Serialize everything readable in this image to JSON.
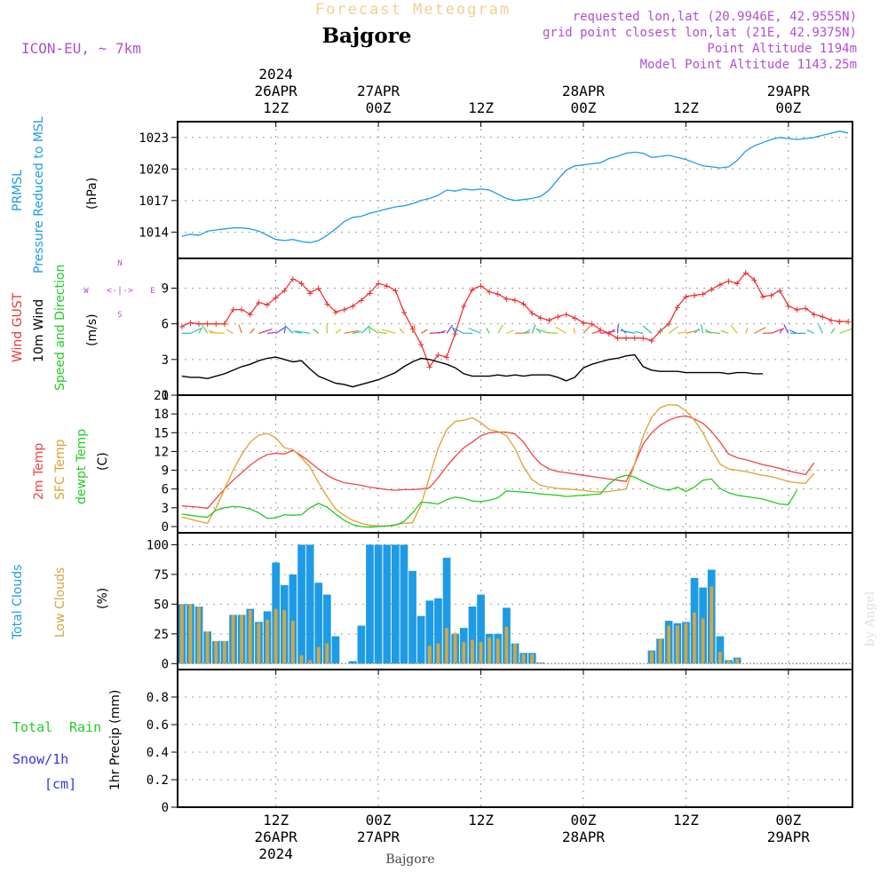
{
  "header": {
    "title": "Forecast Meteogram",
    "location": "Bajgore",
    "model": "ICON-EU, ~ 7km",
    "requested": "requested lon,lat (20.9946E, 42.9555N)",
    "grid_point": "grid point closest lon,lat (21E, 42.9375N)",
    "point_altitude": "Point Altitude 1194m",
    "model_altitude": "Model Point Altitude 1143.25m"
  },
  "time_axis": {
    "top_ticks": [
      {
        "t": 12,
        "lines": [
          "2024",
          "26APR",
          "12Z"
        ]
      },
      {
        "t": 24,
        "lines": [
          "27APR",
          "00Z"
        ]
      },
      {
        "t": 36,
        "lines": [
          "12Z"
        ]
      },
      {
        "t": 48,
        "lines": [
          "28APR",
          "00Z"
        ]
      },
      {
        "t": 60,
        "lines": [
          "12Z"
        ]
      },
      {
        "t": 72,
        "lines": [
          "29APR",
          "00Z"
        ]
      }
    ],
    "bottom_ticks": [
      {
        "t": 12,
        "lines": [
          "12Z",
          "26APR",
          "2024"
        ]
      },
      {
        "t": 24,
        "lines": [
          "00Z",
          "27APR"
        ]
      },
      {
        "t": 36,
        "lines": [
          "12Z"
        ]
      },
      {
        "t": 48,
        "lines": [
          "00Z",
          "28APR"
        ]
      },
      {
        "t": 60,
        "lines": [
          "12Z"
        ]
      },
      {
        "t": 72,
        "lines": [
          "00Z",
          "29APR"
        ]
      }
    ],
    "footer_label": "Bajgore",
    "credit": "by Angel"
  },
  "panel_labels": {
    "pressure": {
      "lines": [
        "PRMSL",
        "Pressure Reduced to MSL"
      ],
      "unit": "(hPa)"
    },
    "wind": {
      "gust": "Wind GUST",
      "wind10": "10m Wind",
      "dir": "Speed and Direction",
      "unit": "(m/s)",
      "compass": {
        "n": "N",
        "s": "S",
        "w": "W",
        "e": "E",
        "row": "<-|->"
      }
    },
    "temp": {
      "t2m": "2m Temp",
      "sfc": "SFC Temp",
      "dew": "dewpt Temp",
      "unit": "(C)"
    },
    "cloud": {
      "total": "Total Clouds",
      "low": "Low Clouds",
      "unit": "(%)"
    },
    "precip": {
      "total": "Total",
      "rain": "Rain",
      "snow": "Snow/1h",
      "cm": "[cm]",
      "unit": "1hr Precip (mm)"
    }
  },
  "colors": {
    "pressure": "#1e9be6",
    "gust": "#ee3333",
    "wind": "#000000",
    "t2m": "#ee4444",
    "sfc": "#e0a030",
    "dew": "#22cc22",
    "total_cloud": "#1e9be6",
    "low_cloud": "#d4a640",
    "label_green": "#22cc22",
    "label_blue": "#3333ee",
    "label_purple": "#b050d0",
    "title": "#f0d090"
  },
  "chart_data": [
    {
      "type": "line",
      "name": "pressure",
      "title": "PRMSL Pressure Reduced to MSL",
      "ylabel": "(hPa)",
      "ylim": [
        1011.5,
        1024.5
      ],
      "xlim": [
        0.5,
        79.5
      ],
      "yticks": [
        1014,
        1017,
        1020,
        1023
      ],
      "series": [
        {
          "name": "PRMSL",
          "x_start": 1,
          "x_step": 1,
          "values": [
            1013.6,
            1013.8,
            1013.7,
            1014.1,
            1014.2,
            1014.3,
            1014.4,
            1014.4,
            1014.3,
            1014.1,
            1013.7,
            1013.3,
            1013.2,
            1013.3,
            1013.1,
            1013.0,
            1013.2,
            1013.7,
            1014.3,
            1015.0,
            1015.4,
            1015.5,
            1015.8,
            1016.0,
            1016.2,
            1016.4,
            1016.5,
            1016.7,
            1017.0,
            1017.2,
            1017.5,
            1018.0,
            1017.9,
            1018.1,
            1018.0,
            1018.1,
            1018.0,
            1017.6,
            1017.2,
            1017.0,
            1017.1,
            1017.2,
            1017.4,
            1018.0,
            1019.0,
            1019.9,
            1020.3,
            1020.4,
            1020.5,
            1020.6,
            1021.0,
            1021.2,
            1021.5,
            1021.6,
            1021.5,
            1021.1,
            1021.2,
            1021.3,
            1021.1,
            1020.9,
            1020.6,
            1020.3,
            1020.2,
            1020.1,
            1020.2,
            1020.8,
            1021.7,
            1022.2,
            1022.5,
            1022.8,
            1023.0,
            1022.9,
            1022.8,
            1022.9,
            1023.0,
            1023.2,
            1023.4,
            1023.6,
            1023.4
          ]
        }
      ]
    },
    {
      "type": "line",
      "name": "wind",
      "ylabel": "(m/s)",
      "ylim": [
        0,
        11.5
      ],
      "xlim": [
        0.5,
        79.5
      ],
      "yticks": [
        0,
        3,
        6,
        9
      ],
      "series": [
        {
          "name": "Wind GUST",
          "x_start": 1,
          "x_step": 1,
          "values": [
            5.8,
            6.1,
            6.0,
            6.0,
            6.0,
            6.0,
            7.2,
            7.2,
            6.8,
            7.8,
            7.6,
            8.2,
            8.8,
            9.8,
            9.4,
            8.6,
            9.0,
            7.7,
            7.0,
            7.2,
            7.5,
            8.0,
            8.6,
            9.4,
            9.2,
            8.8,
            7.0,
            5.6,
            4.3,
            2.4,
            3.4,
            3.2,
            5.2,
            7.5,
            8.9,
            9.2,
            8.7,
            8.5,
            8.1,
            8.0,
            7.7,
            6.9,
            6.5,
            6.3,
            6.6,
            6.8,
            6.5,
            6.1,
            6.0,
            5.5,
            5.2,
            4.8,
            4.8,
            4.8,
            4.8,
            4.6,
            5.4,
            6.0,
            7.4,
            8.3,
            8.4,
            8.5,
            8.9,
            9.3,
            9.6,
            9.4,
            10.3,
            9.7,
            8.3,
            8.4,
            8.8,
            7.5,
            7.2,
            7.3,
            6.8,
            6.6,
            6.3,
            6.2,
            6.2
          ]
        },
        {
          "name": "10m Wind",
          "x_start": 1,
          "x_step": 1,
          "values": [
            1.6,
            1.5,
            1.5,
            1.4,
            1.6,
            1.8,
            2.1,
            2.4,
            2.6,
            2.9,
            3.1,
            3.2,
            3.0,
            2.8,
            2.9,
            2.2,
            1.6,
            1.3,
            1.0,
            0.9,
            0.7,
            0.9,
            1.1,
            1.3,
            1.6,
            1.9,
            2.4,
            2.8,
            3.1,
            3.0,
            2.8,
            2.6,
            2.3,
            1.8,
            1.6,
            1.6,
            1.6,
            1.7,
            1.6,
            1.7,
            1.6,
            1.7,
            1.7,
            1.7,
            1.5,
            1.2,
            1.5,
            2.3,
            2.6,
            2.8,
            3.0,
            3.1,
            3.3,
            3.4,
            2.4,
            2.1,
            2.0,
            2.0,
            2.0,
            1.9,
            1.9,
            1.9,
            1.9,
            1.9,
            1.8,
            1.9,
            1.9,
            1.8,
            1.8
          ]
        }
      ],
      "wind_barb_colors": [
        "#20c8a0",
        "#20c8a0",
        "#30d090",
        "#60d040",
        "#a0d030",
        "#e0c020",
        "#f0a020",
        "#f07020",
        "#f05020",
        "#e03060",
        "#c030c0",
        "#6040e0",
        "#3070e0",
        "#20a0e0",
        "#20c0d0",
        "#20d0a0",
        "#40d040",
        "#a0d030",
        "#e0c020",
        "#f08020"
      ]
    },
    {
      "type": "line",
      "name": "temperature",
      "ylabel": "(C)",
      "ylim": [
        -1,
        21
      ],
      "xlim": [
        0.5,
        79.5
      ],
      "yticks": [
        0,
        3,
        6,
        9,
        12,
        15,
        18,
        21
      ],
      "series": [
        {
          "name": "2m Temp",
          "x_start": 1,
          "x_step": 1,
          "values": [
            3.3,
            3.2,
            3.1,
            2.9,
            4.5,
            6.0,
            7.4,
            8.6,
            9.8,
            10.8,
            11.5,
            11.7,
            11.6,
            12.2,
            11.3,
            10.3,
            9.2,
            8.2,
            7.5,
            7.0,
            6.8,
            6.6,
            6.3,
            6.1,
            5.9,
            5.8,
            5.9,
            5.9,
            6.0,
            6.2,
            7.8,
            9.6,
            11.2,
            12.6,
            13.5,
            14.5,
            15.0,
            15.1,
            15.1,
            14.8,
            13.5,
            11.5,
            10.0,
            9.2,
            8.8,
            8.6,
            8.4,
            8.2,
            8.0,
            7.8,
            7.6,
            7.4,
            7.2,
            10.0,
            13.2,
            15.0,
            16.2,
            17.0,
            17.5,
            17.7,
            17.2,
            16.5,
            15.2,
            13.5,
            11.6,
            11.0,
            10.7,
            10.3,
            9.9,
            9.6,
            9.3,
            8.9,
            8.6,
            8.3,
            10.2
          ]
        },
        {
          "name": "SFC Temp",
          "x_start": 1,
          "x_step": 1,
          "values": [
            1.5,
            1.2,
            0.8,
            0.5,
            3.0,
            6.0,
            9.0,
            11.5,
            13.5,
            14.6,
            14.9,
            14.2,
            12.6,
            12.3,
            11.0,
            9.5,
            7.0,
            4.8,
            2.8,
            1.8,
            1.0,
            0.5,
            0.2,
            0.1,
            0.1,
            0.3,
            0.5,
            0.6,
            3.5,
            8.0,
            12.5,
            15.5,
            16.8,
            17.0,
            17.4,
            16.6,
            15.5,
            15.2,
            14.5,
            12.5,
            9.5,
            7.5,
            6.6,
            6.3,
            6.1,
            6.0,
            5.9,
            5.8,
            5.6,
            5.5,
            5.6,
            5.8,
            6.0,
            10.0,
            14.5,
            17.5,
            19.0,
            19.5,
            19.4,
            18.5,
            17.0,
            15.0,
            12.3,
            10.0,
            9.2,
            9.0,
            8.8,
            8.5,
            8.2,
            8.0,
            7.6,
            7.2,
            7.0,
            6.9,
            8.5
          ]
        },
        {
          "name": "dewpt Temp",
          "x_start": 1,
          "x_step": 1,
          "values": [
            2.0,
            1.8,
            1.6,
            1.5,
            2.6,
            3.0,
            3.2,
            3.1,
            2.8,
            2.2,
            1.3,
            1.4,
            1.9,
            1.8,
            1.9,
            3.0,
            3.7,
            3.1,
            2.0,
            1.0,
            0.3,
            0.0,
            -0.1,
            0.0,
            0.1,
            0.2,
            0.8,
            2.2,
            3.9,
            3.8,
            3.6,
            4.3,
            4.7,
            4.5,
            4.1,
            4.0,
            4.2,
            4.6,
            5.7,
            5.6,
            5.5,
            5.4,
            5.2,
            5.1,
            5.0,
            4.8,
            4.9,
            5.0,
            5.1,
            5.2,
            6.8,
            7.8,
            8.2,
            7.9,
            7.2,
            6.6,
            6.1,
            5.8,
            6.3,
            5.6,
            6.3,
            7.4,
            7.6,
            6.1,
            5.4,
            5.0,
            4.8,
            4.6,
            4.4,
            4.0,
            3.6,
            3.5,
            5.8
          ]
        }
      ]
    },
    {
      "type": "bar",
      "name": "clouds",
      "ylabel": "(%)",
      "ylim": [
        -5,
        110
      ],
      "xlim": [
        0.5,
        79.5
      ],
      "yticks": [
        0,
        25,
        50,
        75,
        100
      ],
      "series": [
        {
          "name": "Total Clouds",
          "x_start": 1,
          "x_step": 1,
          "values": [
            50,
            50,
            48,
            27,
            19,
            19,
            41,
            41,
            46,
            35,
            44,
            85,
            66,
            75,
            100,
            100,
            68,
            58,
            23,
            0,
            2,
            32,
            100,
            100,
            100,
            100,
            100,
            78,
            40,
            53,
            55,
            89,
            25,
            30,
            48,
            58,
            25,
            25,
            47,
            17,
            9,
            9,
            1,
            0,
            0,
            0,
            0,
            0,
            0,
            0,
            0,
            0,
            0,
            0,
            0,
            11,
            21,
            36,
            34,
            35,
            72,
            64,
            79,
            23,
            3,
            5,
            0,
            0,
            0,
            0,
            0,
            0,
            0,
            0,
            0,
            0,
            0,
            0
          ]
        },
        {
          "name": "Low Clouds",
          "x_start": 1,
          "x_step": 1,
          "values": [
            50,
            50,
            48,
            27,
            19,
            19,
            41,
            41,
            45,
            34,
            37,
            46,
            45,
            36,
            7,
            3,
            14,
            17,
            0,
            0,
            0,
            0,
            0,
            0,
            0,
            0,
            0,
            0,
            0,
            15,
            17,
            30,
            26,
            18,
            20,
            18,
            22,
            21,
            31,
            17,
            8,
            8,
            1,
            0,
            0,
            0,
            0,
            0,
            0,
            0,
            0,
            0,
            0,
            0,
            0,
            10,
            21,
            32,
            32,
            34,
            43,
            38,
            65,
            10,
            3,
            4,
            0,
            0,
            0,
            0,
            0,
            0,
            0,
            0,
            0,
            0,
            0,
            0
          ]
        }
      ]
    },
    {
      "type": "bar",
      "name": "precipitation",
      "ylabel": "1hr Precip (mm)",
      "ylim": [
        0,
        1.0
      ],
      "xlim": [
        0.5,
        79.5
      ],
      "yticks": [
        0,
        0.2,
        0.4,
        0.6,
        0.8
      ],
      "series": [
        {
          "name": "Total",
          "values": [
            0
          ]
        },
        {
          "name": "Rain",
          "values": [
            0
          ]
        },
        {
          "name": "Snow/1h",
          "values": [
            0
          ]
        }
      ]
    }
  ]
}
